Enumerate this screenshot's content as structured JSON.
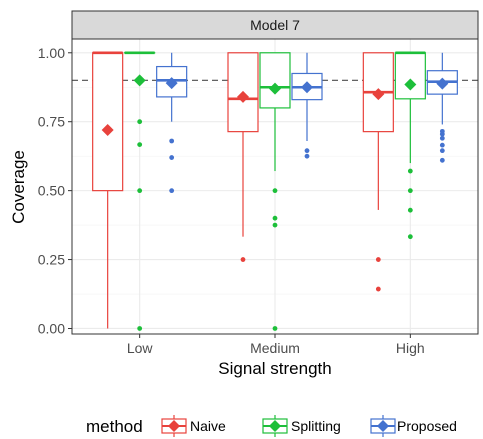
{
  "chart_data": {
    "type": "boxplot",
    "facet_label": "Model 7",
    "xlabel": "Signal strength",
    "ylabel": "Coverage",
    "categories": [
      "Low",
      "Medium",
      "High"
    ],
    "ylim": [
      -0.02,
      1.05
    ],
    "yticks": [
      0.0,
      0.25,
      0.5,
      0.75,
      1.0
    ],
    "ytick_labels": [
      "0.00",
      "0.25",
      "0.50",
      "0.75",
      "1.00"
    ],
    "reference_line": 0.9,
    "grid": true,
    "legend": {
      "title": "method",
      "position": "bottom"
    },
    "series": [
      {
        "name": "Naive",
        "color": "#E8423C",
        "boxes": [
          {
            "category": "Low",
            "whisker_low": 0.0,
            "q1": 0.5,
            "median": 1.0,
            "q3": 1.0,
            "whisker_high": 1.0,
            "mean": 0.72,
            "outliers": []
          },
          {
            "category": "Medium",
            "whisker_low": 0.333,
            "q1": 0.714,
            "median": 0.833,
            "q3": 1.0,
            "whisker_high": 1.0,
            "mean": 0.84,
            "outliers": [
              0.25
            ]
          },
          {
            "category": "High",
            "whisker_low": 0.43,
            "q1": 0.714,
            "median": 0.857,
            "q3": 1.0,
            "whisker_high": 1.0,
            "mean": 0.85,
            "outliers": [
              0.25,
              0.143
            ]
          }
        ]
      },
      {
        "name": "Splitting",
        "color": "#1DBF3A",
        "boxes": [
          {
            "category": "Low",
            "whisker_low": 1.0,
            "q1": 1.0,
            "median": 1.0,
            "q3": 1.0,
            "whisker_high": 1.0,
            "mean": 0.9,
            "outliers": [
              0.75,
              0.667,
              0.5,
              0.0
            ]
          },
          {
            "category": "Medium",
            "whisker_low": 0.571,
            "q1": 0.8,
            "median": 0.875,
            "q3": 1.0,
            "whisker_high": 1.0,
            "mean": 0.87,
            "outliers": [
              0.5,
              0.4,
              0.375,
              0.0
            ]
          },
          {
            "category": "High",
            "whisker_low": 0.6,
            "q1": 0.833,
            "median": 1.0,
            "q3": 1.0,
            "whisker_high": 1.0,
            "mean": 0.885,
            "outliers": [
              0.571,
              0.5,
              0.429,
              0.333
            ]
          }
        ]
      },
      {
        "name": "Proposed",
        "color": "#4472CF",
        "boxes": [
          {
            "category": "Low",
            "whisker_low": 0.75,
            "q1": 0.84,
            "median": 0.9,
            "q3": 0.95,
            "whisker_high": 1.0,
            "mean": 0.89,
            "outliers": [
              0.68,
              0.62,
              0.5
            ]
          },
          {
            "category": "Medium",
            "whisker_low": 0.68,
            "q1": 0.83,
            "median": 0.875,
            "q3": 0.925,
            "whisker_high": 1.0,
            "mean": 0.875,
            "outliers": [
              0.645,
              0.625
            ]
          },
          {
            "category": "High",
            "whisker_low": 0.74,
            "q1": 0.85,
            "median": 0.895,
            "q3": 0.935,
            "whisker_high": 1.0,
            "mean": 0.888,
            "outliers": [
              0.715,
              0.705,
              0.69,
              0.665,
              0.645,
              0.61
            ]
          }
        ]
      }
    ]
  }
}
